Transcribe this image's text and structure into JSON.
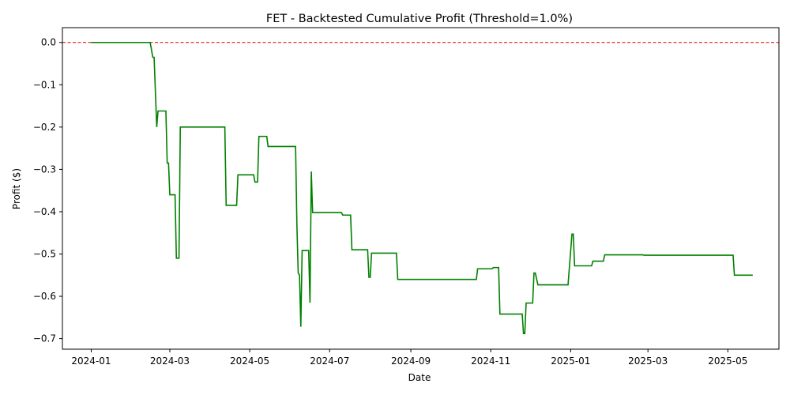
{
  "chart_data": {
    "type": "line",
    "title": "FET - Backtested Cumulative Profit (Threshold=1.0%)",
    "xlabel": "Date",
    "ylabel": "Profit ($)",
    "x_range": [
      "2023-12-10",
      "2025-06-09"
    ],
    "ylim": [
      -0.725,
      0.035
    ],
    "x_ticks": [
      "2024-01-01",
      "2024-03-01",
      "2024-05-01",
      "2024-07-01",
      "2024-09-01",
      "2024-11-01",
      "2025-01-01",
      "2025-03-01",
      "2025-05-01"
    ],
    "x_tick_labels": [
      "2024-01",
      "2024-03",
      "2024-05",
      "2024-07",
      "2024-09",
      "2024-11",
      "2025-01",
      "2025-03",
      "2025-05"
    ],
    "y_ticks": [
      0.0,
      -0.1,
      -0.2,
      -0.3,
      -0.4,
      -0.5,
      -0.6,
      -0.7
    ],
    "y_tick_labels": [
      "0.0",
      "−0.1",
      "−0.2",
      "−0.3",
      "−0.4",
      "−0.5",
      "−0.6",
      "−0.7"
    ],
    "grid": false,
    "reference_line": {
      "y": 0.0,
      "color": "#e00000",
      "style": "dashed"
    },
    "series": [
      {
        "color": "#008000",
        "points": [
          [
            "2024-01-01",
            0.0
          ],
          [
            "2024-02-15",
            0.0
          ],
          [
            "2024-02-17",
            -0.035
          ],
          [
            "2024-02-18",
            -0.035
          ],
          [
            "2024-02-20",
            -0.2
          ],
          [
            "2024-02-21",
            -0.162
          ],
          [
            "2024-02-27",
            -0.162
          ],
          [
            "2024-02-28",
            -0.285
          ],
          [
            "2024-02-29",
            -0.285
          ],
          [
            "2024-03-01",
            -0.36
          ],
          [
            "2024-03-05",
            -0.36
          ],
          [
            "2024-03-06",
            -0.51
          ],
          [
            "2024-03-08",
            -0.51
          ],
          [
            "2024-03-09",
            -0.2
          ],
          [
            "2024-04-12",
            -0.2
          ],
          [
            "2024-04-13",
            -0.385
          ],
          [
            "2024-04-21",
            -0.385
          ],
          [
            "2024-04-22",
            -0.313
          ],
          [
            "2024-05-04",
            -0.313
          ],
          [
            "2024-05-05",
            -0.33
          ],
          [
            "2024-05-07",
            -0.33
          ],
          [
            "2024-05-08",
            -0.222
          ],
          [
            "2024-05-14",
            -0.222
          ],
          [
            "2024-05-15",
            -0.246
          ],
          [
            "2024-06-05",
            -0.246
          ],
          [
            "2024-06-06",
            -0.43
          ],
          [
            "2024-06-07",
            -0.545
          ],
          [
            "2024-06-08",
            -0.55
          ],
          [
            "2024-06-09",
            -0.672
          ],
          [
            "2024-06-10",
            -0.492
          ],
          [
            "2024-06-15",
            -0.492
          ],
          [
            "2024-06-16",
            -0.615
          ],
          [
            "2024-06-17",
            -0.305
          ],
          [
            "2024-06-18",
            -0.402
          ],
          [
            "2024-07-10",
            -0.402
          ],
          [
            "2024-07-11",
            -0.408
          ],
          [
            "2024-07-17",
            -0.408
          ],
          [
            "2024-07-18",
            -0.49
          ],
          [
            "2024-07-30",
            -0.49
          ],
          [
            "2024-07-31",
            -0.555
          ],
          [
            "2024-08-01",
            -0.555
          ],
          [
            "2024-08-02",
            -0.498
          ],
          [
            "2024-08-21",
            -0.498
          ],
          [
            "2024-08-22",
            -0.56
          ],
          [
            "2024-10-21",
            -0.56
          ],
          [
            "2024-10-22",
            -0.535
          ],
          [
            "2024-10-28",
            -0.535
          ],
          [
            "2024-11-02",
            -0.535
          ],
          [
            "2024-11-03",
            -0.532
          ],
          [
            "2024-11-07",
            -0.532
          ],
          [
            "2024-11-08",
            -0.642
          ],
          [
            "2024-11-25",
            -0.642
          ],
          [
            "2024-11-26",
            -0.688
          ],
          [
            "2024-11-27",
            -0.688
          ],
          [
            "2024-11-28",
            -0.616
          ],
          [
            "2024-12-03",
            -0.616
          ],
          [
            "2024-12-04",
            -0.545
          ],
          [
            "2024-12-05",
            -0.545
          ],
          [
            "2024-12-07",
            -0.573
          ],
          [
            "2024-12-30",
            -0.573
          ],
          [
            "2025-01-02",
            -0.453
          ],
          [
            "2025-01-03",
            -0.453
          ],
          [
            "2025-01-04",
            -0.528
          ],
          [
            "2025-01-17",
            -0.528
          ],
          [
            "2025-01-18",
            -0.517
          ],
          [
            "2025-01-26",
            -0.517
          ],
          [
            "2025-01-27",
            -0.502
          ],
          [
            "2025-02-25",
            -0.502
          ],
          [
            "2025-02-26",
            -0.503
          ],
          [
            "2025-05-05",
            -0.503
          ],
          [
            "2025-05-06",
            -0.55
          ],
          [
            "2025-05-20",
            -0.55
          ]
        ]
      }
    ]
  }
}
